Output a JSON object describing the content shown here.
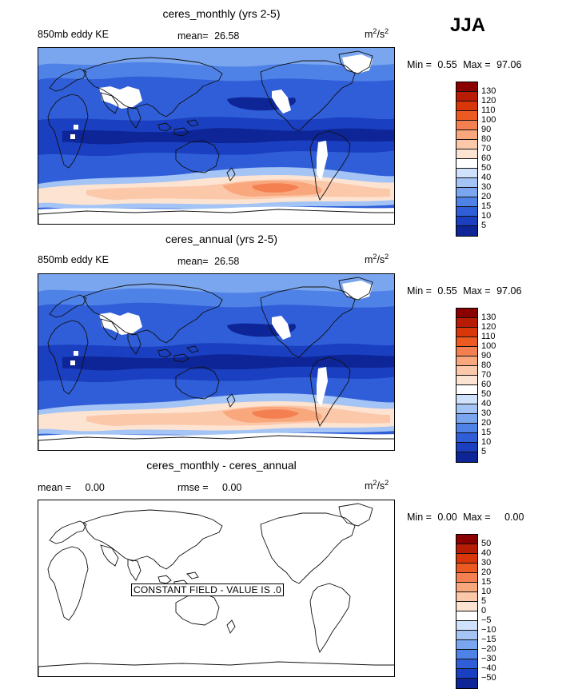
{
  "season": "JJA",
  "panels": [
    {
      "title": "ceres_monthly (yrs 2-5)",
      "variable": "850mb eddy KE",
      "stat_label": "mean=",
      "stat_value": "26.58",
      "units_base": "m",
      "units_exp1": "2",
      "units_mid": "/s",
      "units_exp2": "2",
      "min_label": "Min =",
      "min_value": "0.55",
      "max_label": "Max =",
      "max_value": "97.06",
      "colorbar_ticks": [
        "130",
        "120",
        "110",
        "100",
        "90",
        "80",
        "70",
        "60",
        "50",
        "40",
        "30",
        "20",
        "15",
        "10",
        "5"
      ],
      "colorbar_colors": [
        "#8b0000",
        "#b81c05",
        "#d9360a",
        "#ec5a22",
        "#f47f50",
        "#f9a77d",
        "#fcc8aa",
        "#fde4d2",
        "#ffffff",
        "#cfe1fb",
        "#a3c4f5",
        "#7aa6ef",
        "#4f82e6",
        "#2f5ed8",
        "#1a3fc0",
        "#0d2596"
      ],
      "field": "eddy_ke"
    },
    {
      "title": "ceres_annual (yrs 2-5)",
      "variable": "850mb eddy KE",
      "stat_label": "mean=",
      "stat_value": "26.58",
      "units_base": "m",
      "units_exp1": "2",
      "units_mid": "/s",
      "units_exp2": "2",
      "min_label": "Min =",
      "min_value": "0.55",
      "max_label": "Max =",
      "max_value": "97.06",
      "colorbar_ticks": [
        "130",
        "120",
        "110",
        "100",
        "90",
        "80",
        "70",
        "60",
        "50",
        "40",
        "30",
        "20",
        "15",
        "10",
        "5"
      ],
      "colorbar_colors": [
        "#8b0000",
        "#b81c05",
        "#d9360a",
        "#ec5a22",
        "#f47f50",
        "#f9a77d",
        "#fcc8aa",
        "#fde4d2",
        "#ffffff",
        "#cfe1fb",
        "#a3c4f5",
        "#7aa6ef",
        "#4f82e6",
        "#2f5ed8",
        "#1a3fc0",
        "#0d2596"
      ],
      "field": "eddy_ke"
    },
    {
      "title": "ceres_monthly - ceres_annual",
      "stat_label": "mean =",
      "stat_value": "0.00",
      "rmse_label": "rmse =",
      "rmse_value": "0.00",
      "units_base": "m",
      "units_exp1": "2",
      "units_mid": "/s",
      "units_exp2": "2",
      "min_label": "Min =",
      "min_value": "0.00",
      "max_label": "Max =",
      "max_value": "0.00",
      "constant_label": "CONSTANT FIELD - VALUE IS .0",
      "colorbar_ticks": [
        "50",
        "40",
        "30",
        "20",
        "15",
        "10",
        "5",
        "0",
        "−5",
        "−10",
        "−15",
        "−20",
        "−30",
        "−40",
        "−50"
      ],
      "colorbar_colors": [
        "#8b0000",
        "#b81c05",
        "#d9360a",
        "#ec5a22",
        "#f47f50",
        "#f9a77d",
        "#fcc8aa",
        "#fde4d2",
        "#ffffff",
        "#cfe1fb",
        "#a3c4f5",
        "#7aa6ef",
        "#4f82e6",
        "#2f5ed8",
        "#1a3fc0",
        "#0d2596"
      ],
      "field": "constant"
    }
  ]
}
